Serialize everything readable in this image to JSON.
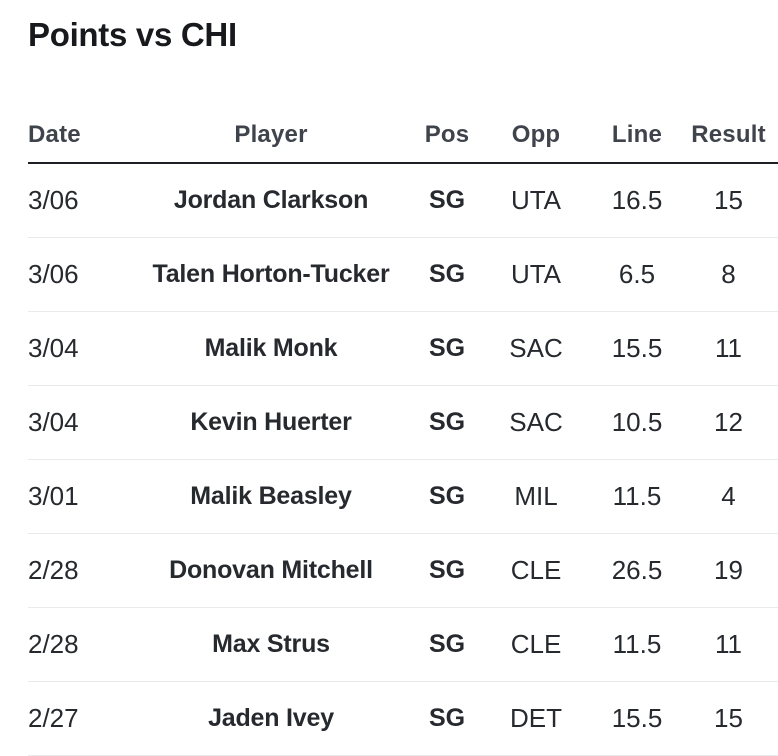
{
  "title": "Points vs CHI",
  "colors": {
    "background": "#ffffff",
    "title_text": "#17191c",
    "header_text": "#3f434b",
    "body_text": "#26292e",
    "header_underline": "#1c1f24",
    "row_separator": "#e9eaeb"
  },
  "table": {
    "columns": [
      {
        "key": "date",
        "label": "Date"
      },
      {
        "key": "player",
        "label": "Player"
      },
      {
        "key": "pos",
        "label": "Pos"
      },
      {
        "key": "opp",
        "label": "Opp"
      },
      {
        "key": "line",
        "label": "Line"
      },
      {
        "key": "result",
        "label": "Result"
      }
    ],
    "rows": [
      {
        "date": "3/06",
        "player": "Jordan Clarkson",
        "pos": "SG",
        "opp": "UTA",
        "line": "16.5",
        "result": "15"
      },
      {
        "date": "3/06",
        "player": "Talen Horton-Tucker",
        "pos": "SG",
        "opp": "UTA",
        "line": "6.5",
        "result": "8"
      },
      {
        "date": "3/04",
        "player": "Malik Monk",
        "pos": "SG",
        "opp": "SAC",
        "line": "15.5",
        "result": "11"
      },
      {
        "date": "3/04",
        "player": "Kevin Huerter",
        "pos": "SG",
        "opp": "SAC",
        "line": "10.5",
        "result": "12"
      },
      {
        "date": "3/01",
        "player": "Malik Beasley",
        "pos": "SG",
        "opp": "MIL",
        "line": "11.5",
        "result": "4"
      },
      {
        "date": "2/28",
        "player": "Donovan Mitchell",
        "pos": "SG",
        "opp": "CLE",
        "line": "26.5",
        "result": "19"
      },
      {
        "date": "2/28",
        "player": "Max Strus",
        "pos": "SG",
        "opp": "CLE",
        "line": "11.5",
        "result": "11"
      },
      {
        "date": "2/27",
        "player": "Jaden Ivey",
        "pos": "SG",
        "opp": "DET",
        "line": "15.5",
        "result": "15"
      }
    ]
  }
}
